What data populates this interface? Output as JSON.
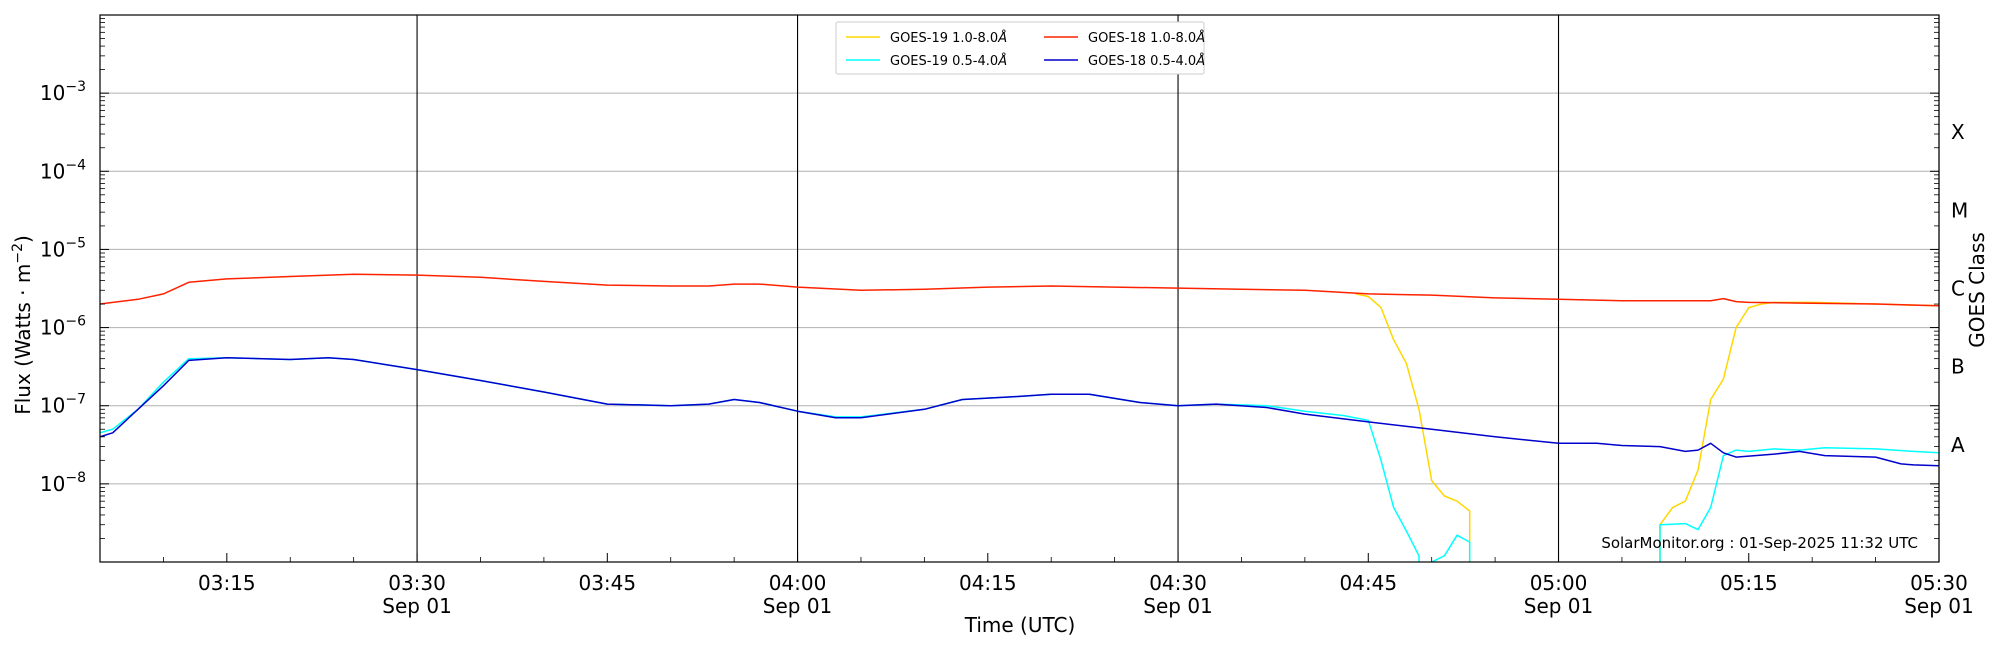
{
  "chart_data": {
    "type": "line",
    "ylabel": "Flux (Watts · m⁻²)",
    "ylabel_prefix": "Flux (Watts · m",
    "ylabel_exp": "−2",
    "ylabel_suffix": ")",
    "xlabel": "Time (UTC)",
    "right_label": "GOES Class",
    "credit": "SolarMonitor.org : 01-Sep-2025 11:32 UTC",
    "y_scale": "log",
    "ylim": [
      1e-09,
      0.01
    ],
    "xlim": [
      "2025-09-01 03:05",
      "2025-09-01 05:30"
    ],
    "grid": "horizontal at decades",
    "legend_position": "top-center",
    "x_ticks": [
      {
        "time": "03:15",
        "label": "03:15",
        "sublabel": ""
      },
      {
        "time": "03:30",
        "label": "03:30",
        "sublabel": "Sep 01"
      },
      {
        "time": "03:45",
        "label": "03:45",
        "sublabel": ""
      },
      {
        "time": "04:00",
        "label": "04:00",
        "sublabel": "Sep 01"
      },
      {
        "time": "04:15",
        "label": "04:15",
        "sublabel": ""
      },
      {
        "time": "04:30",
        "label": "04:30",
        "sublabel": "Sep 01"
      },
      {
        "time": "04:45",
        "label": "04:45",
        "sublabel": ""
      },
      {
        "time": "05:00",
        "label": "05:00",
        "sublabel": "Sep 01"
      },
      {
        "time": "05:15",
        "label": "05:15",
        "sublabel": ""
      },
      {
        "time": "05:30",
        "label": "05:30",
        "sublabel": "Sep 01"
      }
    ],
    "day_lines": [
      "03:30",
      "04:00",
      "04:30",
      "05:00",
      "05:30"
    ],
    "y_ticks": [
      {
        "exp": -8,
        "label_base": "10",
        "label_exp": "−8"
      },
      {
        "exp": -7,
        "label_base": "10",
        "label_exp": "−7"
      },
      {
        "exp": -6,
        "label_base": "10",
        "label_exp": "−6"
      },
      {
        "exp": -5,
        "label_base": "10",
        "label_exp": "−5"
      },
      {
        "exp": -4,
        "label_base": "10",
        "label_exp": "−4"
      },
      {
        "exp": -3,
        "label_base": "10",
        "label_exp": "−3"
      }
    ],
    "goes_classes": [
      {
        "label": "A",
        "exp": -7.5
      },
      {
        "label": "B",
        "exp": -6.5
      },
      {
        "label": "C",
        "exp": -5.5
      },
      {
        "label": "M",
        "exp": -4.5
      },
      {
        "label": "X",
        "exp": -3.5
      }
    ],
    "series": [
      {
        "name": "GOES-19 1.0-8.0Å",
        "legend_base": "GOES-19 1.0-8.0",
        "color": "#FFD700",
        "points": [
          [
            "04:44",
            2.7e-06
          ],
          [
            "04:45",
            2.5e-06
          ],
          [
            "04:46",
            1.8e-06
          ],
          [
            "04:47",
            7e-07
          ],
          [
            "04:48",
            3.5e-07
          ],
          [
            "04:49",
            9e-08
          ],
          [
            "04:50",
            1.1e-08
          ],
          [
            "04:51",
            7e-09
          ],
          [
            "04:52",
            6e-09
          ],
          [
            "04:53",
            4.5e-09
          ],
          [
            "04:53",
            1e-09
          ],
          null,
          [
            "05:08",
            1e-09
          ],
          [
            "05:08",
            3e-09
          ],
          [
            "05:09",
            5e-09
          ],
          [
            "05:10",
            6e-09
          ],
          [
            "05:11",
            1.5e-08
          ],
          [
            "05:12",
            1.2e-07
          ],
          [
            "05:13",
            2.2e-07
          ],
          [
            "05:14",
            1e-06
          ],
          [
            "05:15",
            1.8e-06
          ],
          [
            "05:16",
            2e-06
          ],
          [
            "05:17",
            2.1e-06
          ],
          [
            "05:20",
            2.1e-06
          ],
          [
            "05:25",
            2e-06
          ],
          [
            "05:30",
            1.9e-06
          ]
        ]
      },
      {
        "name": "GOES-18 1.0-8.0Å",
        "legend_base": "GOES-18 1.0-8.0",
        "color": "#FF2200",
        "points": [
          [
            "03:05",
            2e-06
          ],
          [
            "03:06",
            2.1e-06
          ],
          [
            "03:08",
            2.3e-06
          ],
          [
            "03:10",
            2.7e-06
          ],
          [
            "03:12",
            3.8e-06
          ],
          [
            "03:15",
            4.2e-06
          ],
          [
            "03:20",
            4.5e-06
          ],
          [
            "03:25",
            4.8e-06
          ],
          [
            "03:30",
            4.7e-06
          ],
          [
            "03:35",
            4.4e-06
          ],
          [
            "03:40",
            3.9e-06
          ],
          [
            "03:45",
            3.5e-06
          ],
          [
            "03:50",
            3.4e-06
          ],
          [
            "03:53",
            3.4e-06
          ],
          [
            "03:55",
            3.6e-06
          ],
          [
            "03:57",
            3.6e-06
          ],
          [
            "04:00",
            3.3e-06
          ],
          [
            "04:05",
            3e-06
          ],
          [
            "04:10",
            3.1e-06
          ],
          [
            "04:15",
            3.3e-06
          ],
          [
            "04:20",
            3.4e-06
          ],
          [
            "04:25",
            3.3e-06
          ],
          [
            "04:30",
            3.2e-06
          ],
          [
            "04:35",
            3.1e-06
          ],
          [
            "04:40",
            3e-06
          ],
          [
            "04:45",
            2.7e-06
          ],
          [
            "04:50",
            2.6e-06
          ],
          [
            "04:55",
            2.4e-06
          ],
          [
            "05:00",
            2.3e-06
          ],
          [
            "05:05",
            2.2e-06
          ],
          [
            "05:10",
            2.2e-06
          ],
          [
            "05:12",
            2.2e-06
          ],
          [
            "05:13",
            2.35e-06
          ],
          [
            "05:14",
            2.15e-06
          ],
          [
            "05:15",
            2.1e-06
          ],
          [
            "05:20",
            2.05e-06
          ],
          [
            "05:25",
            2e-06
          ],
          [
            "05:30",
            1.9e-06
          ]
        ]
      },
      {
        "name": "GOES-19 0.5-4.0Å",
        "legend_base": "GOES-19 0.5-4.0",
        "color": "#00FFFF",
        "points": [
          [
            "03:05",
            4.5e-08
          ],
          [
            "03:06",
            5e-08
          ],
          [
            "03:08",
            9e-08
          ],
          [
            "03:10",
            2e-07
          ],
          [
            "03:12",
            4e-07
          ],
          [
            "03:15",
            4.1e-07
          ],
          [
            "03:20",
            3.9e-07
          ],
          [
            "03:23",
            4.1e-07
          ],
          [
            "03:25",
            3.9e-07
          ],
          [
            "03:30",
            2.9e-07
          ],
          [
            "03:35",
            2.1e-07
          ],
          [
            "03:40",
            1.5e-07
          ],
          [
            "03:45",
            1.05e-07
          ],
          [
            "03:50",
            1e-07
          ],
          [
            "03:53",
            1.05e-07
          ],
          [
            "03:55",
            1.2e-07
          ],
          [
            "03:57",
            1.1e-07
          ],
          [
            "04:00",
            8.5e-08
          ],
          [
            "04:03",
            7.2e-08
          ],
          [
            "04:05",
            7.2e-08
          ],
          [
            "04:10",
            9e-08
          ],
          [
            "04:13",
            1.2e-07
          ],
          [
            "04:17",
            1.3e-07
          ],
          [
            "04:20",
            1.4e-07
          ],
          [
            "04:23",
            1.4e-07
          ],
          [
            "04:27",
            1.1e-07
          ],
          [
            "04:30",
            1e-07
          ],
          [
            "04:33",
            1.05e-07
          ],
          [
            "04:37",
            1e-07
          ],
          [
            "04:40",
            8.5e-08
          ],
          [
            "04:43",
            7.5e-08
          ],
          [
            "04:45",
            6.5e-08
          ],
          [
            "04:46",
            2e-08
          ],
          [
            "04:47",
            5e-09
          ],
          [
            "04:48",
            2.5e-09
          ],
          [
            "04:49",
            1.2e-09
          ],
          [
            "04:49",
            1e-09
          ],
          null,
          [
            "04:50",
            1e-09
          ],
          [
            "04:51",
            1.2e-09
          ],
          [
            "04:52",
            2.2e-09
          ],
          [
            "04:53",
            1.8e-09
          ],
          [
            "04:53",
            1e-09
          ],
          null,
          [
            "05:08",
            1e-09
          ],
          [
            "05:08",
            3e-09
          ],
          [
            "05:10",
            3.1e-09
          ],
          [
            "05:11",
            2.6e-09
          ],
          [
            "05:12",
            5e-09
          ],
          [
            "05:13",
            2.3e-08
          ],
          [
            "05:14",
            2.7e-08
          ],
          [
            "05:15",
            2.6e-08
          ],
          [
            "05:17",
            2.8e-08
          ],
          [
            "05:19",
            2.7e-08
          ],
          [
            "05:21",
            2.9e-08
          ],
          [
            "05:25",
            2.8e-08
          ],
          [
            "05:28",
            2.6e-08
          ],
          [
            "05:30",
            2.5e-08
          ]
        ]
      },
      {
        "name": "GOES-18 0.5-4.0Å",
        "legend_base": "GOES-18 0.5-4.0",
        "color": "#0000CC",
        "points": [
          [
            "03:05",
            4e-08
          ],
          [
            "03:06",
            4.5e-08
          ],
          [
            "03:08",
            9e-08
          ],
          [
            "03:10",
            1.8e-07
          ],
          [
            "03:12",
            3.8e-07
          ],
          [
            "03:15",
            4.1e-07
          ],
          [
            "03:20",
            3.9e-07
          ],
          [
            "03:23",
            4.1e-07
          ],
          [
            "03:25",
            3.9e-07
          ],
          [
            "03:30",
            2.9e-07
          ],
          [
            "03:35",
            2.1e-07
          ],
          [
            "03:40",
            1.5e-07
          ],
          [
            "03:45",
            1.05e-07
          ],
          [
            "03:50",
            1e-07
          ],
          [
            "03:53",
            1.05e-07
          ],
          [
            "03:55",
            1.2e-07
          ],
          [
            "03:57",
            1.1e-07
          ],
          [
            "04:00",
            8.5e-08
          ],
          [
            "04:03",
            7e-08
          ],
          [
            "04:05",
            7e-08
          ],
          [
            "04:10",
            9e-08
          ],
          [
            "04:13",
            1.2e-07
          ],
          [
            "04:17",
            1.3e-07
          ],
          [
            "04:20",
            1.4e-07
          ],
          [
            "04:23",
            1.4e-07
          ],
          [
            "04:27",
            1.1e-07
          ],
          [
            "04:30",
            1e-07
          ],
          [
            "04:33",
            1.05e-07
          ],
          [
            "04:37",
            9.5e-08
          ],
          [
            "04:40",
            7.8e-08
          ],
          [
            "04:45",
            6.2e-08
          ],
          [
            "04:50",
            5e-08
          ],
          [
            "04:55",
            4e-08
          ],
          [
            "05:00",
            3.3e-08
          ],
          [
            "05:03",
            3.3e-08
          ],
          [
            "05:05",
            3.1e-08
          ],
          [
            "05:08",
            3e-08
          ],
          [
            "05:10",
            2.6e-08
          ],
          [
            "05:11",
            2.7e-08
          ],
          [
            "05:12",
            3.3e-08
          ],
          [
            "05:13",
            2.5e-08
          ],
          [
            "05:14",
            2.2e-08
          ],
          [
            "05:17",
            2.4e-08
          ],
          [
            "05:19",
            2.6e-08
          ],
          [
            "05:21",
            2.3e-08
          ],
          [
            "05:25",
            2.2e-08
          ],
          [
            "05:27",
            1.8e-08
          ],
          [
            "05:28",
            1.75e-08
          ],
          [
            "05:30",
            1.7e-08
          ]
        ]
      }
    ],
    "legend_order": [
      0,
      2,
      1,
      3
    ]
  }
}
